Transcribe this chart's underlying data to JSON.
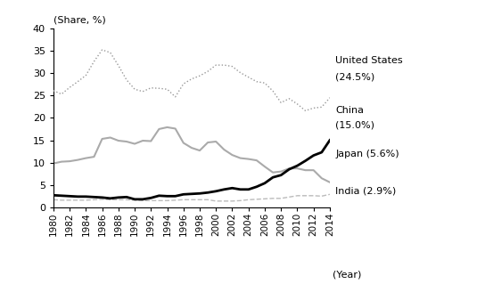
{
  "years": [
    1980,
    1981,
    1982,
    1983,
    1984,
    1985,
    1986,
    1987,
    1988,
    1989,
    1990,
    1991,
    1992,
    1993,
    1994,
    1995,
    1996,
    1997,
    1998,
    1999,
    2000,
    2001,
    2002,
    2003,
    2004,
    2005,
    2006,
    2007,
    2008,
    2009,
    2010,
    2011,
    2012,
    2013,
    2014
  ],
  "usa": [
    26.1,
    25.3,
    26.8,
    28.1,
    29.5,
    32.6,
    35.2,
    34.6,
    31.7,
    28.5,
    26.4,
    25.9,
    26.7,
    26.6,
    26.4,
    24.7,
    27.6,
    28.7,
    29.4,
    30.4,
    31.8,
    31.8,
    31.5,
    30.1,
    29.1,
    28.1,
    27.8,
    26.0,
    23.4,
    24.3,
    23.1,
    21.6,
    22.2,
    22.4,
    24.5
  ],
  "china": [
    2.7,
    2.6,
    2.5,
    2.4,
    2.4,
    2.3,
    2.2,
    2.0,
    2.2,
    2.3,
    1.8,
    1.8,
    2.1,
    2.6,
    2.5,
    2.5,
    2.9,
    3.0,
    3.1,
    3.3,
    3.6,
    4.0,
    4.3,
    4.0,
    4.0,
    4.6,
    5.4,
    6.7,
    7.2,
    8.5,
    9.3,
    10.4,
    11.6,
    12.3,
    15.0
  ],
  "japan": [
    9.8,
    10.2,
    10.3,
    10.6,
    11.0,
    11.3,
    15.3,
    15.6,
    14.9,
    14.7,
    14.2,
    14.9,
    14.8,
    17.5,
    17.9,
    17.6,
    14.4,
    13.3,
    12.7,
    14.5,
    14.7,
    12.9,
    11.7,
    11.0,
    10.8,
    10.5,
    9.1,
    7.8,
    8.0,
    8.7,
    8.7,
    8.3,
    8.3,
    6.5,
    5.6
  ],
  "india": [
    1.7,
    1.6,
    1.6,
    1.6,
    1.6,
    1.7,
    1.8,
    1.7,
    1.7,
    1.7,
    1.6,
    1.5,
    1.5,
    1.5,
    1.5,
    1.6,
    1.7,
    1.7,
    1.7,
    1.7,
    1.4,
    1.4,
    1.4,
    1.5,
    1.7,
    1.8,
    1.9,
    2.0,
    2.0,
    2.3,
    2.6,
    2.6,
    2.6,
    2.5,
    2.9
  ],
  "usa_color": "#999999",
  "china_color": "#000000",
  "japan_color": "#aaaaaa",
  "india_color": "#bbbbbb",
  "ylabel": "(Share, %)",
  "xlabel": "(Year)",
  "ylim": [
    0,
    40
  ],
  "yticks": [
    0,
    5,
    10,
    15,
    20,
    25,
    30,
    35,
    40
  ],
  "usa_label_line1": "United States",
  "usa_label_line2": "(24.5%)",
  "china_label_line1": "China",
  "china_label_line2": "(15.0%)",
  "japan_label": "Japan (5.6%)",
  "india_label": "India (2.9%)"
}
